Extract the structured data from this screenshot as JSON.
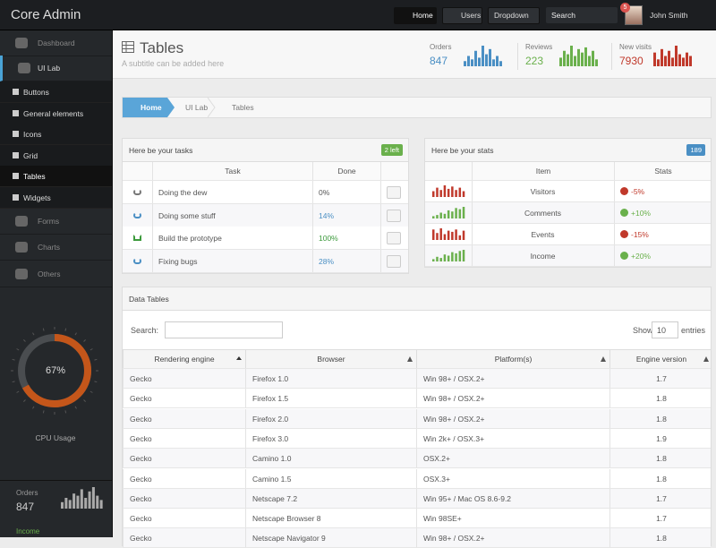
{
  "header": {
    "brand": "Core Admin",
    "nav": [
      "Home",
      "Users",
      "Dropdown"
    ],
    "search": "Search",
    "notifications": "5",
    "user": "John Smith"
  },
  "sidebar": {
    "items": [
      "Dashboard",
      "UI Lab",
      "Forms",
      "Charts",
      "Others"
    ],
    "submenu": [
      "Buttons",
      "General elements",
      "Icons",
      "Grid",
      "Tables",
      "Widgets"
    ],
    "cpu": {
      "percent": 67,
      "percent_label": "67%",
      "label": "CPU Usage"
    },
    "orders": {
      "label": "Orders",
      "value": "847",
      "spark": [
        3,
        5,
        4,
        7,
        6,
        9,
        5,
        8,
        10,
        6,
        4
      ]
    },
    "income": {
      "label": "Income"
    }
  },
  "page": {
    "title": "Tables",
    "subtitle": "A subtitle can be added here",
    "stats": [
      {
        "label": "Orders",
        "value": "847",
        "color": "#4a8fc4",
        "spark": [
          3,
          6,
          4,
          9,
          5,
          12,
          7,
          10,
          4,
          6,
          3
        ]
      },
      {
        "label": "Reviews",
        "value": "223",
        "color": "#6ab04c",
        "spark": [
          5,
          9,
          7,
          12,
          6,
          10,
          8,
          11,
          6,
          9,
          4
        ]
      },
      {
        "label": "New visits",
        "value": "7930",
        "color": "#c0392b",
        "spark": [
          8,
          4,
          10,
          6,
          9,
          5,
          12,
          7,
          5,
          8,
          6
        ]
      }
    ]
  },
  "breadcrumb": [
    "Home",
    "UI Lab",
    "Tables"
  ],
  "tasks": {
    "title": "Here be your tasks",
    "badge": "2 left",
    "columns": [
      "Task",
      "Done"
    ],
    "rows": [
      [
        "Doing the dew",
        "0%"
      ],
      [
        "Doing some stuff",
        "14%"
      ],
      [
        "Build the prototype",
        "100%"
      ],
      [
        "Fixing bugs",
        "28%"
      ]
    ]
  },
  "stats": {
    "title": "Here be your stats",
    "badge": "189",
    "columns": [
      "Item",
      "Stats"
    ],
    "rows": [
      {
        "item": "Visitors",
        "stat": "-5%",
        "color": "#c0392b",
        "spark": [
          5,
          8,
          6,
          10,
          7,
          9,
          6,
          8,
          5
        ]
      },
      {
        "item": "Comments",
        "stat": "+10%",
        "color": "#6ab04c",
        "spark": [
          2,
          3,
          5,
          4,
          7,
          6,
          9,
          8,
          10
        ]
      },
      {
        "item": "Events",
        "stat": "-15%",
        "color": "#c0392b",
        "spark": [
          9,
          6,
          10,
          5,
          8,
          7,
          9,
          4,
          8
        ]
      },
      {
        "item": "Income",
        "stat": "+20%",
        "color": "#6ab04c",
        "spark": [
          2,
          4,
          3,
          6,
          5,
          8,
          7,
          9,
          10
        ]
      }
    ]
  },
  "datatable": {
    "title": "Data Tables",
    "search": "Search:",
    "show": "Show",
    "page_size": "10",
    "entries": "entries",
    "columns": [
      "Rendering engine",
      "Browser",
      "Platform(s)",
      "Engine version"
    ],
    "rows": [
      [
        "Gecko",
        "Firefox 1.0",
        "Win 98+ / OSX.2+",
        "1.7"
      ],
      [
        "Gecko",
        "Firefox 1.5",
        "Win 98+ / OSX.2+",
        "1.8"
      ],
      [
        "Gecko",
        "Firefox 2.0",
        "Win 98+ / OSX.2+",
        "1.8"
      ],
      [
        "Gecko",
        "Firefox 3.0",
        "Win 2k+ / OSX.3+",
        "1.9"
      ],
      [
        "Gecko",
        "Camino 1.0",
        "OSX.2+",
        "1.8"
      ],
      [
        "Gecko",
        "Camino 1.5",
        "OSX.3+",
        "1.8"
      ],
      [
        "Gecko",
        "Netscape 7.2",
        "Win 95+ / Mac OS 8.6-9.2",
        "1.7"
      ],
      [
        "Gecko",
        "Netscape Browser 8",
        "Win 98SE+",
        "1.7"
      ],
      [
        "Gecko",
        "Netscape Navigator 9",
        "Win 98+ / OSX.2+",
        "1.8"
      ]
    ]
  }
}
